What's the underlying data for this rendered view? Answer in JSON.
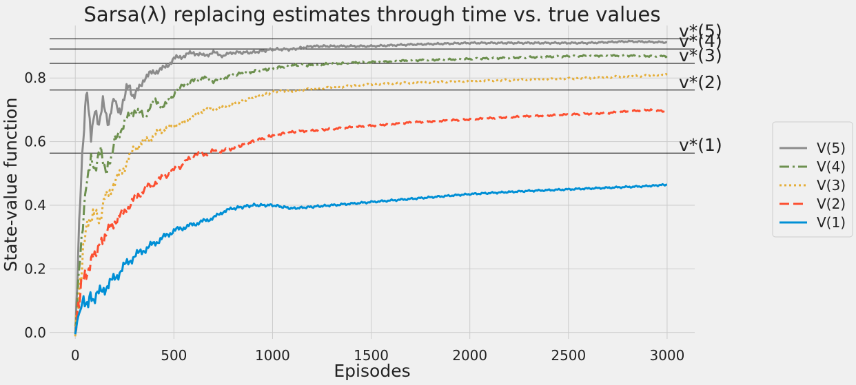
{
  "chart_data": {
    "type": "line",
    "title": "Sarsa(λ) replacing estimates through time vs. true values",
    "xlabel": "Episodes",
    "ylabel": "State-value function",
    "xlim": [
      -130,
      3140
    ],
    "ylim": [
      -0.02,
      0.965
    ],
    "xticks": [
      0,
      500,
      1000,
      1500,
      2000,
      2500,
      3000
    ],
    "xtick_labels": [
      "0",
      "500",
      "1000",
      "1500",
      "2000",
      "2500",
      "3000"
    ],
    "yticks": [
      0.0,
      0.2,
      0.4,
      0.6,
      0.8
    ],
    "ytick_labels": [
      "0.0",
      "0.2",
      "0.4",
      "0.6",
      "0.8"
    ],
    "grid": true,
    "legend_position": "right",
    "reference_lines": [
      {
        "label": "v*(5)",
        "value": 0.923
      },
      {
        "label": "v*(4)",
        "value": 0.891
      },
      {
        "label": "v*(3)",
        "value": 0.846
      },
      {
        "label": "v*(2)",
        "value": 0.762
      },
      {
        "label": "v*(1)",
        "value": 0.564
      }
    ],
    "series": [
      {
        "name": "V(5)",
        "color": "#8b8b8b",
        "dash": "solid",
        "points": [
          [
            0,
            0.0
          ],
          [
            10,
            0.15
          ],
          [
            20,
            0.35
          ],
          [
            35,
            0.55
          ],
          [
            50,
            0.7
          ],
          [
            60,
            0.77
          ],
          [
            80,
            0.62
          ],
          [
            100,
            0.7
          ],
          [
            120,
            0.64
          ],
          [
            140,
            0.72
          ],
          [
            170,
            0.66
          ],
          [
            200,
            0.74
          ],
          [
            230,
            0.68
          ],
          [
            260,
            0.78
          ],
          [
            300,
            0.74
          ],
          [
            350,
            0.8
          ],
          [
            400,
            0.82
          ],
          [
            450,
            0.83
          ],
          [
            500,
            0.86
          ],
          [
            550,
            0.87
          ],
          [
            600,
            0.88
          ],
          [
            650,
            0.87
          ],
          [
            700,
            0.88
          ],
          [
            750,
            0.87
          ],
          [
            800,
            0.88
          ],
          [
            900,
            0.88
          ],
          [
            1000,
            0.89
          ],
          [
            1100,
            0.89
          ],
          [
            1200,
            0.9
          ],
          [
            1300,
            0.9
          ],
          [
            1500,
            0.9
          ],
          [
            1700,
            0.905
          ],
          [
            2000,
            0.91
          ],
          [
            2300,
            0.91
          ],
          [
            2600,
            0.91
          ],
          [
            2800,
            0.915
          ],
          [
            3000,
            0.912
          ]
        ]
      },
      {
        "name": "V(4)",
        "color": "#6d904f",
        "dash": "dashdot",
        "points": [
          [
            0,
            0.0
          ],
          [
            10,
            0.1
          ],
          [
            25,
            0.25
          ],
          [
            45,
            0.4
          ],
          [
            60,
            0.48
          ],
          [
            80,
            0.56
          ],
          [
            100,
            0.52
          ],
          [
            130,
            0.57
          ],
          [
            160,
            0.5
          ],
          [
            200,
            0.6
          ],
          [
            250,
            0.66
          ],
          [
            300,
            0.7
          ],
          [
            350,
            0.68
          ],
          [
            400,
            0.73
          ],
          [
            450,
            0.71
          ],
          [
            500,
            0.75
          ],
          [
            550,
            0.78
          ],
          [
            600,
            0.79
          ],
          [
            650,
            0.8
          ],
          [
            700,
            0.79
          ],
          [
            750,
            0.8
          ],
          [
            800,
            0.81
          ],
          [
            900,
            0.82
          ],
          [
            1000,
            0.83
          ],
          [
            1100,
            0.84
          ],
          [
            1200,
            0.84
          ],
          [
            1300,
            0.845
          ],
          [
            1500,
            0.85
          ],
          [
            1700,
            0.855
          ],
          [
            2000,
            0.86
          ],
          [
            2300,
            0.865
          ],
          [
            2600,
            0.87
          ],
          [
            2800,
            0.87
          ],
          [
            3000,
            0.868
          ]
        ]
      },
      {
        "name": "V(3)",
        "color": "#e5ae38",
        "dash": "dotted",
        "points": [
          [
            0,
            0.0
          ],
          [
            10,
            0.05
          ],
          [
            25,
            0.15
          ],
          [
            40,
            0.25
          ],
          [
            60,
            0.33
          ],
          [
            90,
            0.38
          ],
          [
            120,
            0.35
          ],
          [
            150,
            0.42
          ],
          [
            200,
            0.47
          ],
          [
            250,
            0.52
          ],
          [
            300,
            0.58
          ],
          [
            350,
            0.6
          ],
          [
            400,
            0.62
          ],
          [
            450,
            0.64
          ],
          [
            500,
            0.65
          ],
          [
            550,
            0.66
          ],
          [
            600,
            0.68
          ],
          [
            650,
            0.7
          ],
          [
            700,
            0.7
          ],
          [
            750,
            0.71
          ],
          [
            800,
            0.72
          ],
          [
            900,
            0.74
          ],
          [
            1000,
            0.755
          ],
          [
            1100,
            0.76
          ],
          [
            1300,
            0.77
          ],
          [
            1500,
            0.78
          ],
          [
            1700,
            0.785
          ],
          [
            2000,
            0.79
          ],
          [
            2300,
            0.795
          ],
          [
            2600,
            0.8
          ],
          [
            2800,
            0.805
          ],
          [
            3000,
            0.81
          ]
        ]
      },
      {
        "name": "V(2)",
        "color": "#fc4f30",
        "dash": "dashed",
        "points": [
          [
            0,
            0.0
          ],
          [
            15,
            0.08
          ],
          [
            30,
            0.14
          ],
          [
            50,
            0.18
          ],
          [
            80,
            0.22
          ],
          [
            110,
            0.26
          ],
          [
            150,
            0.3
          ],
          [
            200,
            0.35
          ],
          [
            250,
            0.38
          ],
          [
            300,
            0.42
          ],
          [
            350,
            0.45
          ],
          [
            400,
            0.47
          ],
          [
            450,
            0.49
          ],
          [
            500,
            0.51
          ],
          [
            550,
            0.53
          ],
          [
            600,
            0.56
          ],
          [
            650,
            0.56
          ],
          [
            700,
            0.57
          ],
          [
            750,
            0.57
          ],
          [
            800,
            0.58
          ],
          [
            900,
            0.6
          ],
          [
            1000,
            0.62
          ],
          [
            1100,
            0.63
          ],
          [
            1300,
            0.64
          ],
          [
            1500,
            0.65
          ],
          [
            1700,
            0.66
          ],
          [
            2000,
            0.67
          ],
          [
            2300,
            0.68
          ],
          [
            2500,
            0.685
          ],
          [
            2700,
            0.69
          ],
          [
            2900,
            0.7
          ],
          [
            3000,
            0.695
          ]
        ]
      },
      {
        "name": "V(1)",
        "color": "#008fd5",
        "dash": "solid",
        "points": [
          [
            0,
            0.0
          ],
          [
            15,
            0.05
          ],
          [
            30,
            0.08
          ],
          [
            60,
            0.1
          ],
          [
            100,
            0.11
          ],
          [
            150,
            0.14
          ],
          [
            200,
            0.17
          ],
          [
            250,
            0.21
          ],
          [
            300,
            0.24
          ],
          [
            350,
            0.26
          ],
          [
            400,
            0.28
          ],
          [
            450,
            0.3
          ],
          [
            500,
            0.32
          ],
          [
            550,
            0.33
          ],
          [
            600,
            0.34
          ],
          [
            650,
            0.35
          ],
          [
            700,
            0.36
          ],
          [
            750,
            0.38
          ],
          [
            800,
            0.39
          ],
          [
            900,
            0.4
          ],
          [
            1000,
            0.4
          ],
          [
            1100,
            0.39
          ],
          [
            1200,
            0.395
          ],
          [
            1300,
            0.4
          ],
          [
            1500,
            0.41
          ],
          [
            1700,
            0.42
          ],
          [
            2000,
            0.435
          ],
          [
            2300,
            0.445
          ],
          [
            2500,
            0.45
          ],
          [
            2700,
            0.455
          ],
          [
            2900,
            0.46
          ],
          [
            3000,
            0.465
          ]
        ]
      }
    ]
  }
}
